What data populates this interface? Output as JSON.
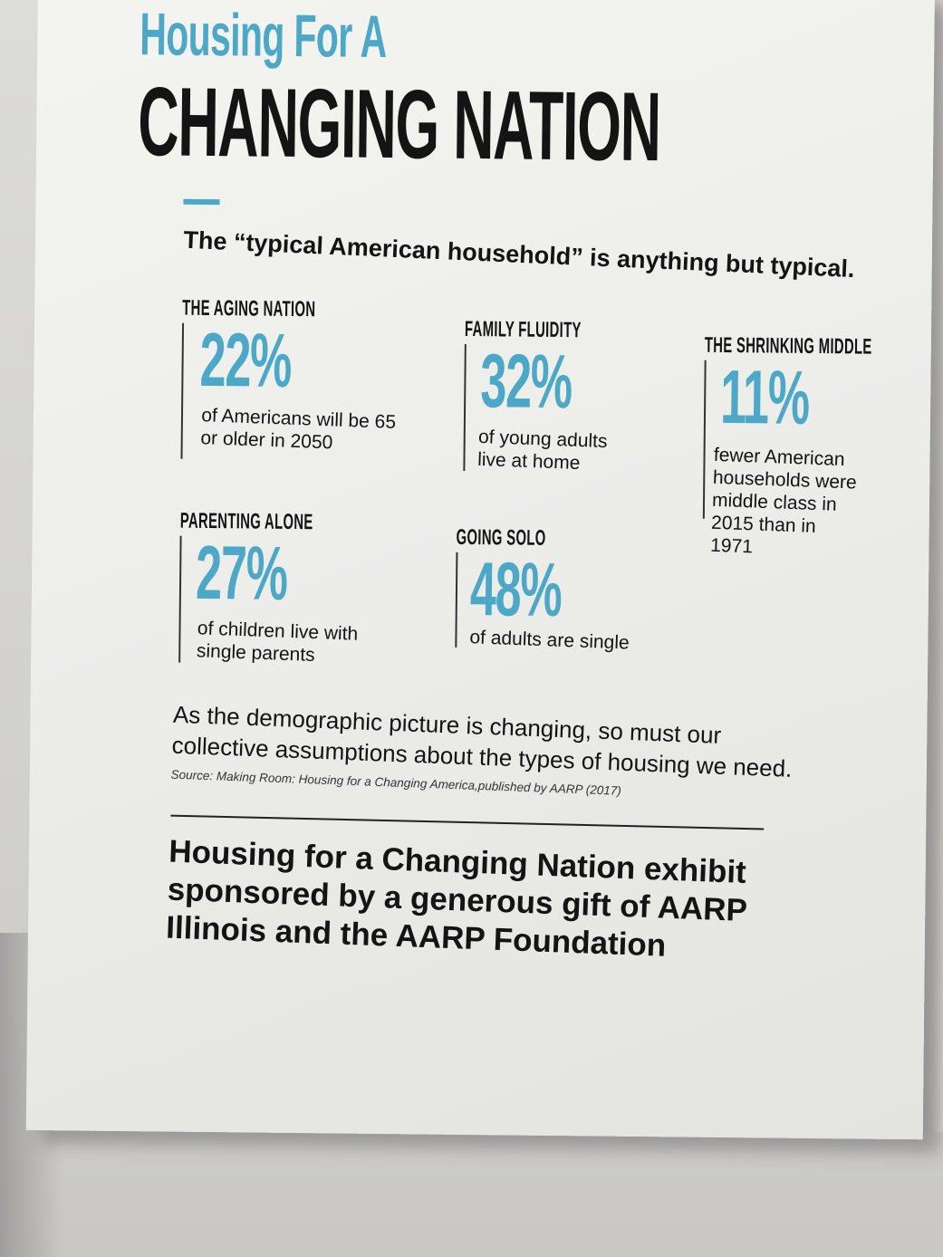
{
  "title": {
    "line1": "Housing For A",
    "line2": "CHANGING NATION"
  },
  "intro": "The “typical American household” is anything but typical.",
  "stats": [
    {
      "heading": "THE AGING NATION",
      "value": "22%",
      "description": "of Americans will be 65 or older in 2050"
    },
    {
      "heading": "FAMILY FLUIDITY",
      "value": "32%",
      "description": "of young adults live at home"
    },
    {
      "heading": "THE SHRINKING MIDDLE",
      "value": "11%",
      "description": "fewer American households were middle class in 2015 than in 1971"
    },
    {
      "heading": "PARENTING ALONE",
      "value": "27%",
      "description": "of children live with single parents"
    },
    {
      "heading": "GOING SOLO",
      "value": "48%",
      "description": "of adults are single"
    }
  ],
  "closing": "As the demographic picture is changing, so must our\ncollective assumptions about the types of housing we need.",
  "source": "Source: Making Room: Housing for a Changing America,published by AARP (2017)",
  "sponsor": "Housing for a Changing Nation exhibit\nsponsored by a generous gift of AARP\nIllinois and the AARP Foundation",
  "colors": {
    "accent": "#4da8c7",
    "text": "#141414",
    "panel": "#efefec"
  }
}
